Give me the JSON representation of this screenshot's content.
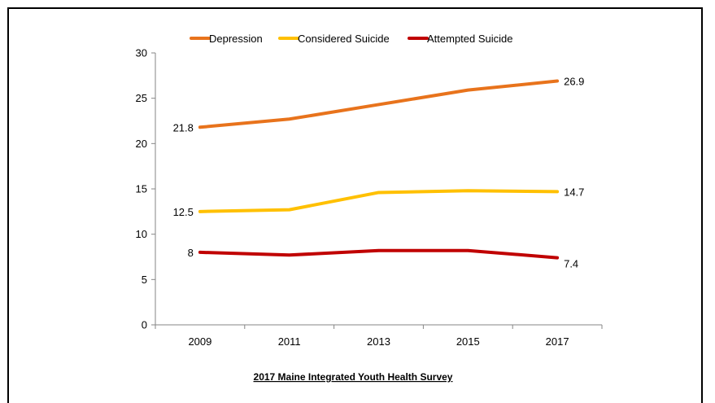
{
  "chart_data": {
    "type": "line",
    "title": "",
    "xlabel": "",
    "ylabel": "",
    "categories": [
      "2009",
      "2011",
      "2013",
      "2015",
      "2017"
    ],
    "ylim": [
      0,
      30
    ],
    "yticks": [
      0,
      5,
      10,
      15,
      20,
      25,
      30
    ],
    "grid": false,
    "legend_position": "top",
    "series": [
      {
        "name": "Depression",
        "color": "#E8731C",
        "values": [
          21.8,
          22.7,
          24.3,
          25.9,
          26.9
        ],
        "labels": [
          {
            "index": 0,
            "text": "21.8"
          },
          {
            "index": 4,
            "text": "26.9"
          }
        ]
      },
      {
        "name": "Considered Suicide",
        "color": "#FFC000",
        "values": [
          12.5,
          12.7,
          14.6,
          14.8,
          14.7
        ],
        "labels": [
          {
            "index": 0,
            "text": "12.5"
          },
          {
            "index": 4,
            "text": "14.7"
          }
        ]
      },
      {
        "name": "Attempted Suicide",
        "color": "#C00000",
        "values": [
          8,
          7.7,
          8.2,
          8.2,
          7.4
        ],
        "labels": [
          {
            "index": 0,
            "text": "8"
          },
          {
            "index": 4,
            "text": "7.4"
          }
        ]
      }
    ],
    "caption": "2017 Maine Integrated Youth Health Survey"
  }
}
